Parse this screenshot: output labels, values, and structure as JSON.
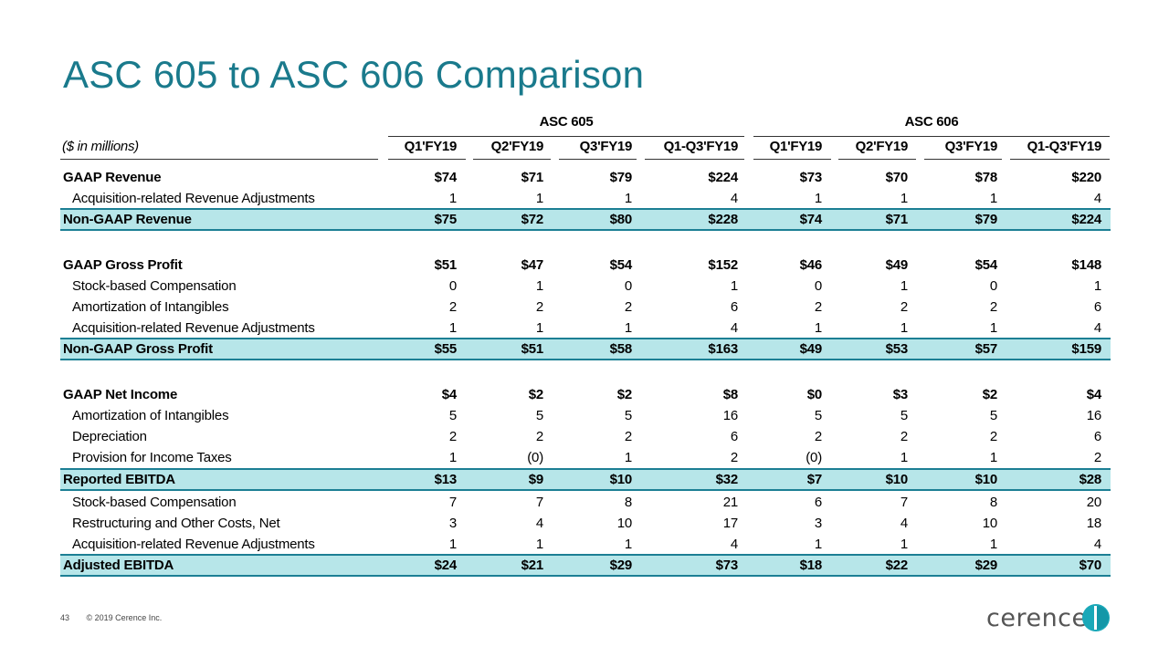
{
  "title": "ASC 605 to ASC 606 Comparison",
  "groups": {
    "asc605": "ASC 605",
    "asc606": "ASC 606"
  },
  "units_label": "($ in millions)",
  "columns": [
    "Q1'FY19",
    "Q2'FY19",
    "Q3'FY19",
    "Q1-Q3'FY19",
    "Q1'FY19",
    "Q2'FY19",
    "Q3'FY19",
    "Q1-Q3'FY19"
  ],
  "rows": [
    {
      "label": "GAAP Revenue",
      "values": [
        "$74",
        "$71",
        "$79",
        "$224",
        "$73",
        "$70",
        "$78",
        "$220"
      ]
    },
    {
      "label": "Acquisition-related Revenue Adjustments",
      "values": [
        "1",
        "1",
        "1",
        "4",
        "1",
        "1",
        "1",
        "4"
      ]
    },
    {
      "label": "Non-GAAP Revenue",
      "values": [
        "$75",
        "$72",
        "$80",
        "$228",
        "$74",
        "$71",
        "$79",
        "$224"
      ]
    },
    {
      "label": "GAAP Gross Profit",
      "values": [
        "$51",
        "$47",
        "$54",
        "$152",
        "$46",
        "$49",
        "$54",
        "$148"
      ]
    },
    {
      "label": "Stock-based Compensation",
      "values": [
        "0",
        "1",
        "0",
        "1",
        "0",
        "1",
        "0",
        "1"
      ]
    },
    {
      "label": "Amortization of Intangibles",
      "values": [
        "2",
        "2",
        "2",
        "6",
        "2",
        "2",
        "2",
        "6"
      ]
    },
    {
      "label": "Acquisition-related Revenue Adjustments",
      "values": [
        "1",
        "1",
        "1",
        "4",
        "1",
        "1",
        "1",
        "4"
      ]
    },
    {
      "label": "Non-GAAP Gross Profit",
      "values": [
        "$55",
        "$51",
        "$58",
        "$163",
        "$49",
        "$53",
        "$57",
        "$159"
      ]
    },
    {
      "label": "GAAP Net Income",
      "values": [
        "$4",
        "$2",
        "$2",
        "$8",
        "$0",
        "$3",
        "$2",
        "$4"
      ]
    },
    {
      "label": "Amortization of Intangibles",
      "values": [
        "5",
        "5",
        "5",
        "16",
        "5",
        "5",
        "5",
        "16"
      ]
    },
    {
      "label": "Depreciation",
      "values": [
        "2",
        "2",
        "2",
        "6",
        "2",
        "2",
        "2",
        "6"
      ]
    },
    {
      "label": "Provision for Income Taxes",
      "values": [
        "1",
        "(0)",
        "1",
        "2",
        "(0)",
        "1",
        "1",
        "2"
      ]
    },
    {
      "label": "Reported EBITDA",
      "values": [
        "$13",
        "$9",
        "$10",
        "$32",
        "$7",
        "$10",
        "$10",
        "$28"
      ]
    },
    {
      "label": "Stock-based Compensation",
      "values": [
        "7",
        "7",
        "8",
        "21",
        "6",
        "7",
        "8",
        "20"
      ]
    },
    {
      "label": "Restructuring and Other Costs, Net",
      "values": [
        "3",
        "4",
        "10",
        "17",
        "3",
        "4",
        "10",
        "18"
      ]
    },
    {
      "label": "Acquisition-related Revenue Adjustments",
      "values": [
        "1",
        "1",
        "1",
        "4",
        "1",
        "1",
        "1",
        "4"
      ]
    },
    {
      "label": "Adjusted EBITDA",
      "values": [
        "$24",
        "$21",
        "$29",
        "$73",
        "$18",
        "$22",
        "$29",
        "$70"
      ]
    }
  ],
  "footer": {
    "page": "43",
    "copyright": "© 2019 Cerence Inc."
  },
  "logo": {
    "text": "cerence"
  },
  "colors": {
    "title": "#1a7a8c",
    "highlight": "#b7e6e9",
    "highlight_border": "#1c7f94",
    "logo_mark": "#1aa8b8"
  }
}
